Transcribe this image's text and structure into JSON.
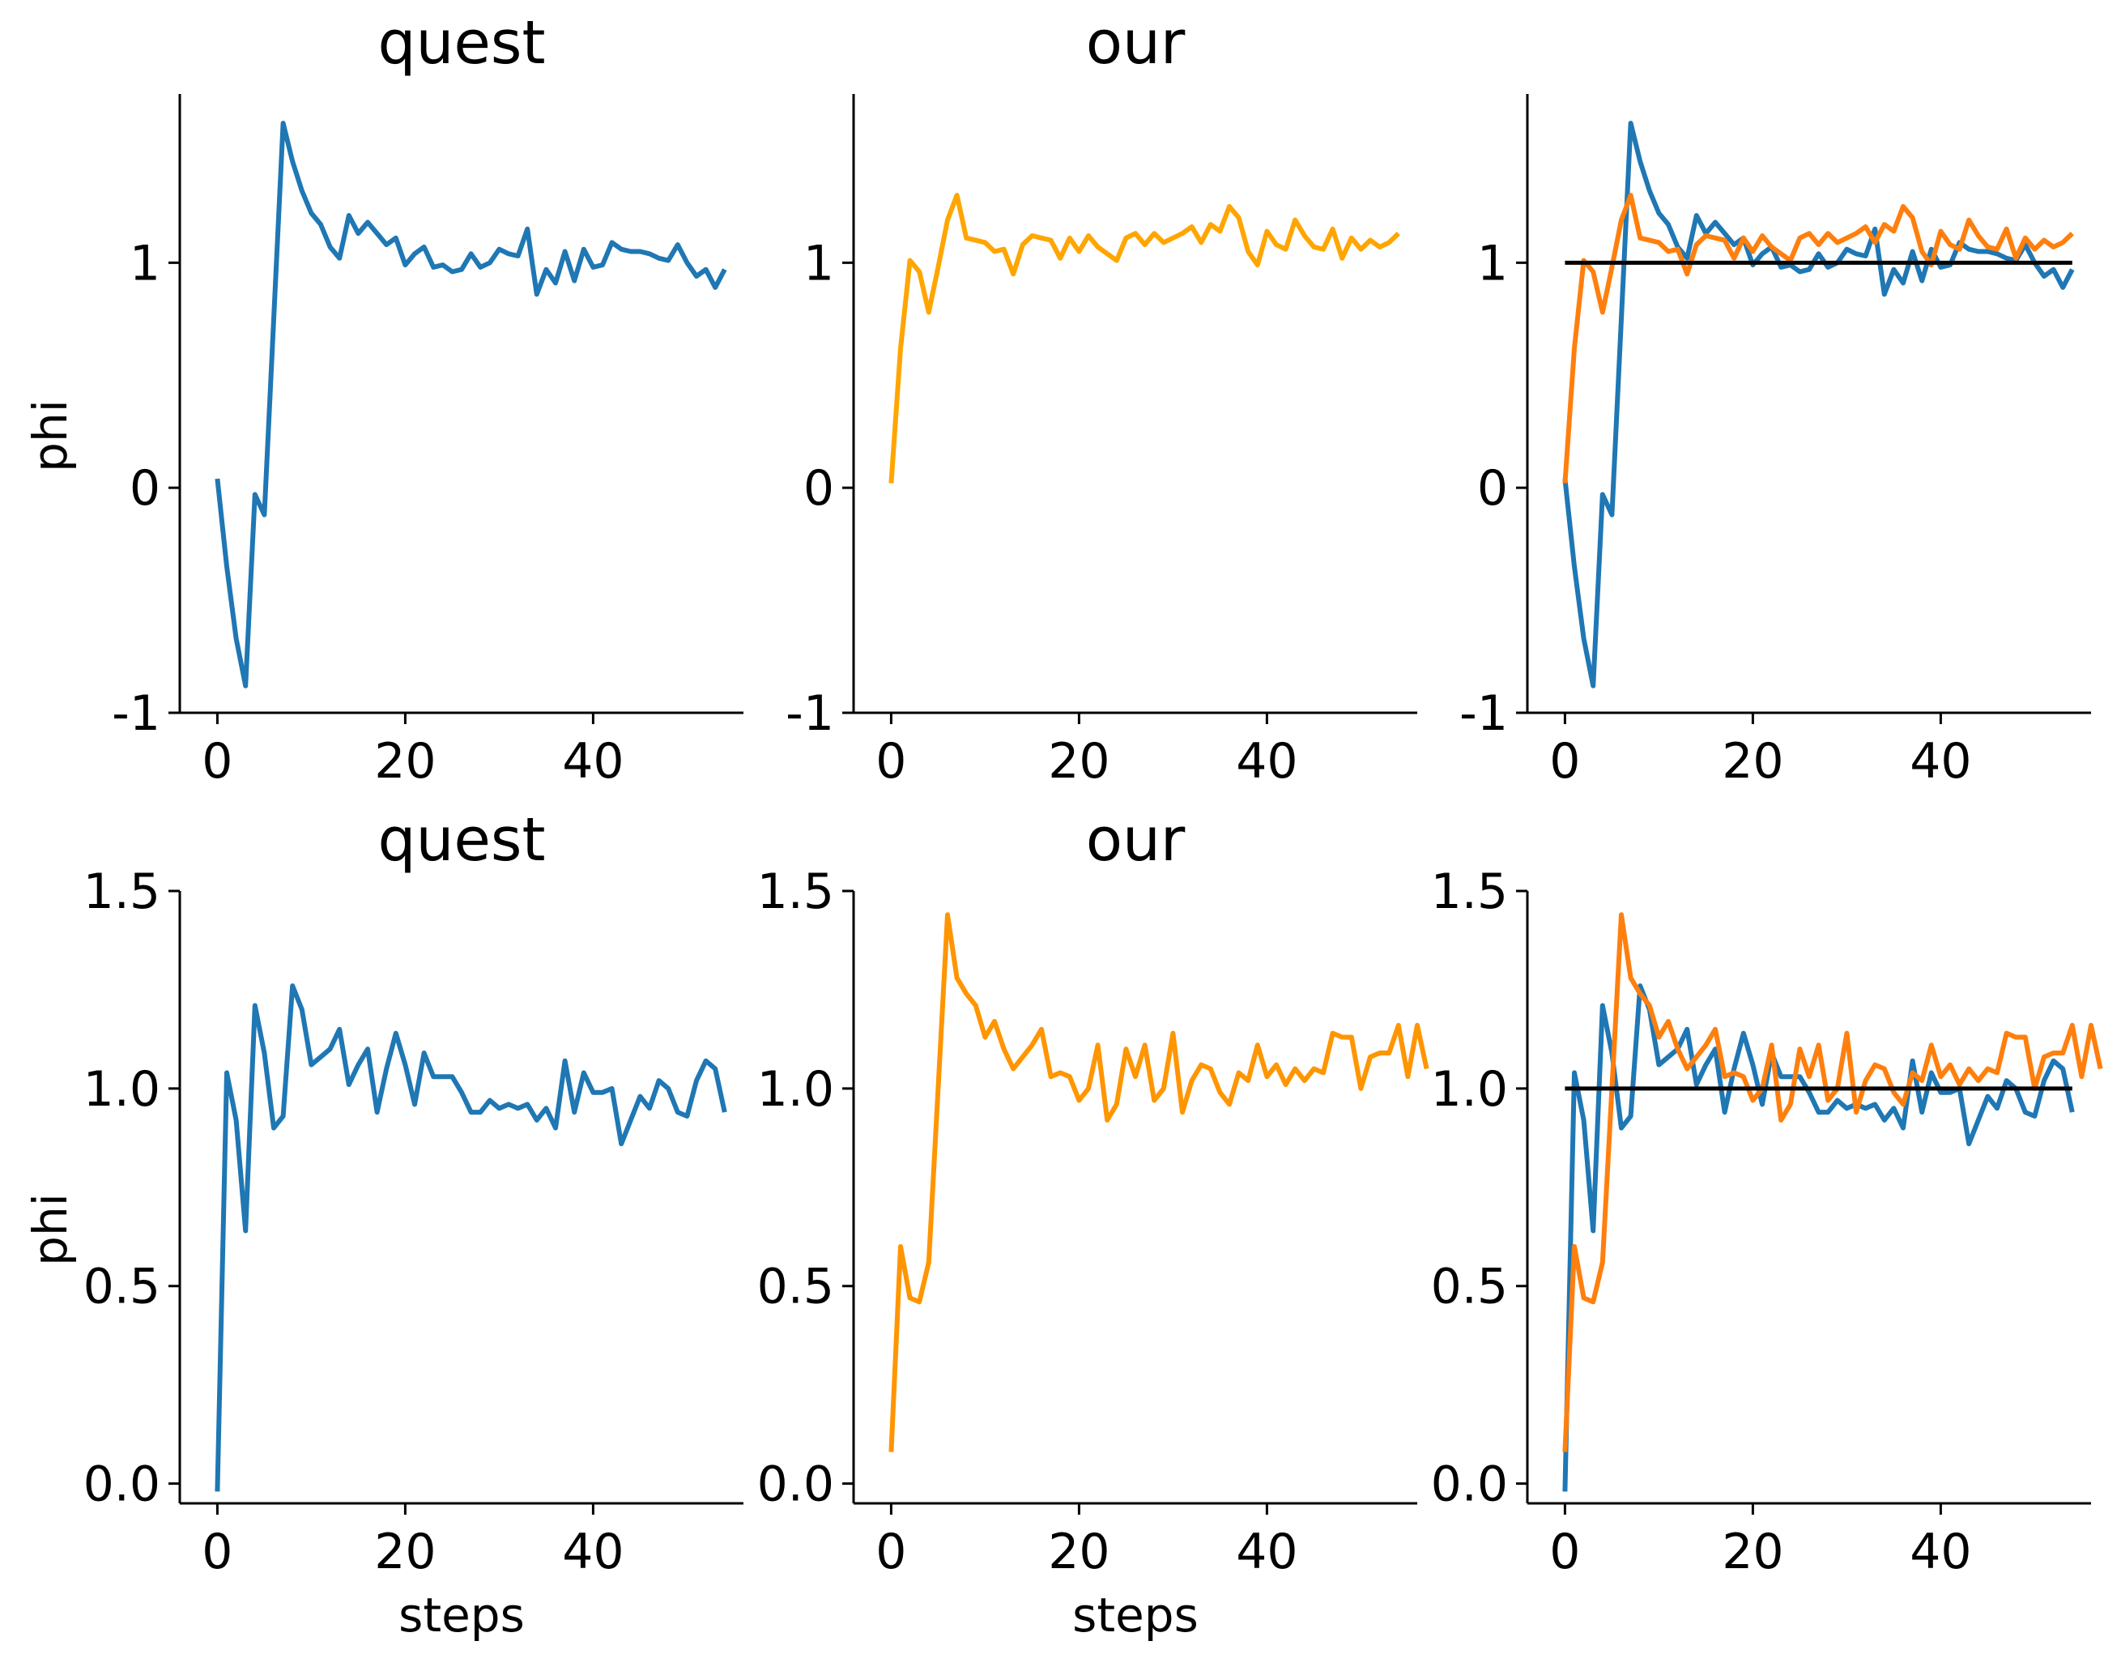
{
  "colors": {
    "quest": "#1f77b4",
    "our_top": "#ffa500",
    "our_bottom": "#ff9500",
    "our_overlay": "#ff7f0e",
    "reference": "#000000"
  },
  "chart_data": [
    {
      "type": "line",
      "title": "quest",
      "xlabel": "",
      "ylabel": "phi",
      "xlim": [
        -4,
        56
      ],
      "ylim": [
        -1,
        1.75
      ],
      "xticks": [
        0,
        20,
        40
      ],
      "xtick_labels": [
        "0",
        "20",
        "40"
      ],
      "yticks": [
        -1,
        0,
        1
      ],
      "ytick_labels": [
        "-1",
        "0",
        "1"
      ],
      "series": [
        {
          "key": "quest",
          "values": [
            0.04,
            -0.35,
            -0.67,
            -0.88,
            -0.03,
            -0.12,
            0.75,
            1.62,
            1.45,
            1.32,
            1.22,
            1.17,
            1.07,
            1.02,
            1.21,
            1.13,
            1.18,
            1.13,
            1.08,
            1.11,
            0.99,
            1.04,
            1.07,
            0.98,
            0.99,
            0.96,
            0.97,
            1.04,
            0.98,
            1.0,
            1.06,
            1.04,
            1.03,
            1.15,
            0.86,
            0.97,
            0.91,
            1.05,
            0.92,
            1.06,
            0.98,
            0.99,
            1.09,
            1.06,
            1.05,
            1.05,
            1.04,
            1.02,
            1.01,
            1.08,
            1.0,
            0.94,
            0.97,
            0.89,
            0.97
          ]
        }
      ]
    },
    {
      "type": "line",
      "title": "our",
      "xlabel": "",
      "ylabel": "",
      "xlim": [
        -4,
        56
      ],
      "ylim": [
        -1,
        1.75
      ],
      "xticks": [
        0,
        20,
        40
      ],
      "xtick_labels": [
        "0",
        "20",
        "40"
      ],
      "yticks": [
        -1,
        0,
        1
      ],
      "ytick_labels": [
        "-1",
        "0",
        "1"
      ],
      "series": [
        {
          "key": "our_top",
          "values": [
            0.02,
            0.62,
            1.01,
            0.96,
            0.78,
            0.98,
            1.19,
            1.3,
            1.11,
            1.1,
            1.09,
            1.05,
            1.06,
            0.95,
            1.08,
            1.12,
            1.11,
            1.1,
            1.02,
            1.11,
            1.05,
            1.12,
            1.07,
            1.04,
            1.01,
            1.11,
            1.13,
            1.08,
            1.13,
            1.09,
            1.11,
            1.13,
            1.16,
            1.09,
            1.17,
            1.14,
            1.25,
            1.2,
            1.05,
            0.99,
            1.14,
            1.08,
            1.06,
            1.19,
            1.12,
            1.07,
            1.06,
            1.15,
            1.02,
            1.11,
            1.06,
            1.1,
            1.07,
            1.09,
            1.13
          ]
        }
      ]
    },
    {
      "type": "line",
      "title": "",
      "xlabel": "",
      "ylabel": "",
      "xlim": [
        -4,
        56
      ],
      "ylim": [
        -1,
        1.75
      ],
      "xticks": [
        0,
        20,
        40
      ],
      "xtick_labels": [
        "0",
        "20",
        "40"
      ],
      "yticks": [
        -1,
        0,
        1
      ],
      "ytick_labels": [
        "-1",
        "0",
        "1"
      ],
      "reference_y": 1,
      "series": [
        {
          "key": "quest",
          "same_as": "panel-1"
        },
        {
          "key": "our_overlay",
          "same_as": "panel-2"
        }
      ]
    },
    {
      "type": "line",
      "title": "quest",
      "xlabel": "steps",
      "ylabel": "phi",
      "xlim": [
        -4,
        56
      ],
      "ylim": [
        -0.05,
        1.5
      ],
      "xticks": [
        0,
        20,
        40
      ],
      "xtick_labels": [
        "0",
        "20",
        "40"
      ],
      "yticks": [
        0,
        0.5,
        1,
        1.5
      ],
      "ytick_labels": [
        "0.0",
        "0.5",
        "1.0",
        "1.5"
      ],
      "series": [
        {
          "key": "quest",
          "values": [
            -0.02,
            1.04,
            0.92,
            0.64,
            1.21,
            1.09,
            0.9,
            0.93,
            1.26,
            1.2,
            1.06,
            1.08,
            1.1,
            1.15,
            1.01,
            1.06,
            1.1,
            0.94,
            1.05,
            1.14,
            1.06,
            0.96,
            1.09,
            1.03,
            1.03,
            1.03,
            0.99,
            0.94,
            0.94,
            0.97,
            0.95,
            0.96,
            0.95,
            0.96,
            0.92,
            0.95,
            0.9,
            1.07,
            0.94,
            1.04,
            0.99,
            0.99,
            1.0,
            0.86,
            0.92,
            0.98,
            0.95,
            1.02,
            1.0,
            0.94,
            0.93,
            1.02,
            1.07,
            1.05,
            0.94
          ]
        }
      ]
    },
    {
      "type": "line",
      "title": "our",
      "xlabel": "steps",
      "ylabel": "",
      "xlim": [
        -4,
        56
      ],
      "ylim": [
        -0.05,
        1.5
      ],
      "xticks": [
        0,
        20,
        40
      ],
      "xtick_labels": [
        "0",
        "20",
        "40"
      ],
      "yticks": [
        0,
        0.5,
        1,
        1.5
      ],
      "ytick_labels": [
        "0.0",
        "0.5",
        "1.0",
        "1.5"
      ],
      "series": [
        {
          "key": "our_bottom",
          "values": [
            0.08,
            0.6,
            0.47,
            0.46,
            0.56,
            1.0,
            1.44,
            1.28,
            1.24,
            1.21,
            1.13,
            1.17,
            1.1,
            1.05,
            1.08,
            1.11,
            1.15,
            1.03,
            1.04,
            1.03,
            0.97,
            1.0,
            1.11,
            0.92,
            0.96,
            1.1,
            1.03,
            1.11,
            0.97,
            1.0,
            1.14,
            0.94,
            1.02,
            1.06,
            1.05,
            0.99,
            0.96,
            1.04,
            1.02,
            1.11,
            1.03,
            1.06,
            1.01,
            1.05,
            1.02,
            1.05,
            1.04,
            1.14,
            1.13,
            1.13,
            1.0,
            1.08,
            1.09,
            1.09,
            1.16,
            1.03,
            1.16,
            1.05
          ]
        }
      ]
    },
    {
      "type": "line",
      "title": "",
      "xlabel": "",
      "ylabel": "",
      "xlim": [
        -4,
        56
      ],
      "ylim": [
        -0.05,
        1.5
      ],
      "xticks": [
        0,
        20,
        40
      ],
      "xtick_labels": [
        "0",
        "20",
        "40"
      ],
      "yticks": [
        0,
        0.5,
        1,
        1.5
      ],
      "ytick_labels": [
        "0.0",
        "0.5",
        "1.0",
        "1.5"
      ],
      "reference_y": 1,
      "series": [
        {
          "key": "quest",
          "same_as": "panel-4"
        },
        {
          "key": "our_overlay",
          "same_as": "panel-5"
        }
      ]
    }
  ]
}
